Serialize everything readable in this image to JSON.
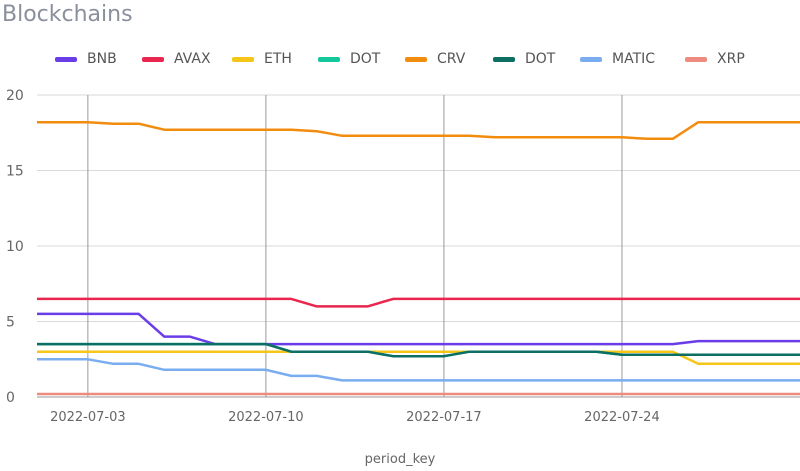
{
  "chart_data": {
    "type": "line",
    "title": "Blockchains",
    "xlabel": "period_key",
    "ylabel": "",
    "ylim": [
      0,
      20
    ],
    "yticks": [
      0,
      5,
      10,
      15,
      20
    ],
    "x_start": "2022-07-01",
    "x_end": "2022-07-31",
    "xticks": [
      "2022-07-03",
      "2022-07-10",
      "2022-07-17",
      "2022-07-24"
    ],
    "grid": true,
    "legend_position": "top",
    "x": [
      "2022-07-01",
      "2022-07-02",
      "2022-07-03",
      "2022-07-04",
      "2022-07-05",
      "2022-07-06",
      "2022-07-07",
      "2022-07-08",
      "2022-07-09",
      "2022-07-10",
      "2022-07-11",
      "2022-07-12",
      "2022-07-13",
      "2022-07-14",
      "2022-07-15",
      "2022-07-16",
      "2022-07-17",
      "2022-07-18",
      "2022-07-19",
      "2022-07-20",
      "2022-07-21",
      "2022-07-22",
      "2022-07-23",
      "2022-07-24",
      "2022-07-25",
      "2022-07-26",
      "2022-07-27",
      "2022-07-28",
      "2022-07-29",
      "2022-07-30",
      "2022-07-31"
    ],
    "series": [
      {
        "name": "BNB",
        "color": "#6a3de8",
        "values": [
          5.5,
          5.5,
          5.5,
          5.5,
          5.5,
          4.0,
          4.0,
          3.5,
          3.5,
          3.5,
          3.5,
          3.5,
          3.5,
          3.5,
          3.5,
          3.5,
          3.5,
          3.5,
          3.5,
          3.5,
          3.5,
          3.5,
          3.5,
          3.5,
          3.5,
          3.5,
          3.7,
          3.7,
          3.7,
          3.7,
          3.7
        ]
      },
      {
        "name": "AVAX",
        "color": "#e8264e",
        "values": [
          6.5,
          6.5,
          6.5,
          6.5,
          6.5,
          6.5,
          6.5,
          6.5,
          6.5,
          6.5,
          6.5,
          6.0,
          6.0,
          6.0,
          6.5,
          6.5,
          6.5,
          6.5,
          6.5,
          6.5,
          6.5,
          6.5,
          6.5,
          6.5,
          6.5,
          6.5,
          6.5,
          6.5,
          6.5,
          6.5,
          6.5
        ]
      },
      {
        "name": "ETH",
        "color": "#f5c518",
        "values": [
          3.0,
          3.0,
          3.0,
          3.0,
          3.0,
          3.0,
          3.0,
          3.0,
          3.0,
          3.0,
          3.0,
          3.0,
          3.0,
          3.0,
          3.0,
          3.0,
          3.0,
          3.0,
          3.0,
          3.0,
          3.0,
          3.0,
          3.0,
          3.0,
          3.0,
          3.0,
          2.2,
          2.2,
          2.2,
          2.2,
          2.2
        ]
      },
      {
        "name": "DOT",
        "color": "#12c79a",
        "values": [
          3.5,
          3.5,
          3.5,
          3.5,
          3.5,
          3.5,
          3.5,
          3.5,
          3.5,
          3.5,
          3.0,
          3.0,
          3.0,
          3.0,
          2.7,
          2.7,
          2.7,
          3.0,
          3.0,
          3.0,
          3.0,
          3.0,
          3.0,
          2.8,
          2.8,
          2.8,
          2.8,
          2.8,
          2.8,
          2.8,
          2.8
        ]
      },
      {
        "name": "CRV",
        "color": "#f28c0f",
        "values": [
          18.2,
          18.2,
          18.2,
          18.1,
          18.1,
          17.7,
          17.7,
          17.7,
          17.7,
          17.7,
          17.7,
          17.6,
          17.3,
          17.3,
          17.3,
          17.3,
          17.3,
          17.3,
          17.2,
          17.2,
          17.2,
          17.2,
          17.2,
          17.2,
          17.1,
          17.1,
          18.2,
          18.2,
          18.2,
          18.2,
          18.2
        ]
      },
      {
        "name": "DOT",
        "color": "#0d6e63",
        "values": [
          3.5,
          3.5,
          3.5,
          3.5,
          3.5,
          3.5,
          3.5,
          3.5,
          3.5,
          3.5,
          3.0,
          3.0,
          3.0,
          3.0,
          2.7,
          2.7,
          2.7,
          3.0,
          3.0,
          3.0,
          3.0,
          3.0,
          3.0,
          2.8,
          2.8,
          2.8,
          2.8,
          2.8,
          2.8,
          2.8,
          2.8
        ]
      },
      {
        "name": "MATIC",
        "color": "#7aacf0",
        "values": [
          2.5,
          2.5,
          2.5,
          2.2,
          2.2,
          1.8,
          1.8,
          1.8,
          1.8,
          1.8,
          1.4,
          1.4,
          1.1,
          1.1,
          1.1,
          1.1,
          1.1,
          1.1,
          1.1,
          1.1,
          1.1,
          1.1,
          1.1,
          1.1,
          1.1,
          1.1,
          1.1,
          1.1,
          1.1,
          1.1,
          1.1
        ]
      },
      {
        "name": "XRP",
        "color": "#ef8a7e",
        "values": [
          0.2,
          0.2,
          0.2,
          0.2,
          0.2,
          0.2,
          0.2,
          0.2,
          0.2,
          0.2,
          0.2,
          0.2,
          0.2,
          0.2,
          0.2,
          0.2,
          0.2,
          0.2,
          0.2,
          0.2,
          0.2,
          0.2,
          0.2,
          0.2,
          0.2,
          0.2,
          0.2,
          0.2,
          0.2,
          0.2,
          0.2
        ]
      }
    ]
  }
}
